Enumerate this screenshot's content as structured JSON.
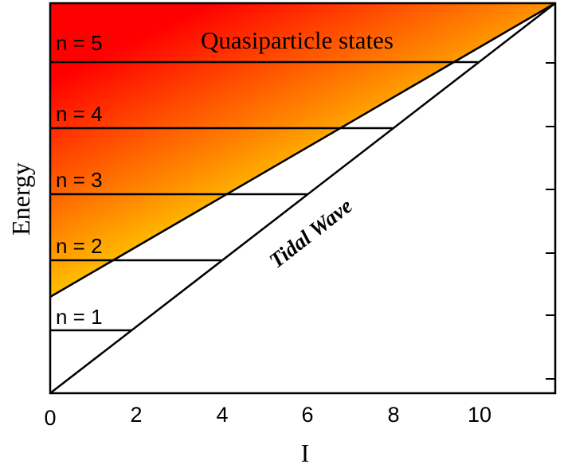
{
  "chart_data": {
    "type": "diagram",
    "xlabel": "I",
    "ylabel": "Energy",
    "x_ticks": [
      "0",
      "2",
      "4",
      "6",
      "8",
      "10"
    ],
    "xlim": [
      0,
      11.8
    ],
    "region_label": "Quasiparticle states",
    "tidal_wave_label": "Tidal Wave",
    "levels": [
      {
        "label": "n = 1",
        "line_end_I": 1.9
      },
      {
        "label": "n = 2",
        "line_end_I": 4.0
      },
      {
        "label": "n = 3",
        "line_end_I": 6.0
      },
      {
        "label": "n = 4",
        "line_end_I": 8.0
      },
      {
        "label": "n = 5",
        "line_end_I": 10.0
      }
    ],
    "gradient_colors": [
      "#ff0000",
      "#ff8800",
      "#ffff00"
    ]
  }
}
